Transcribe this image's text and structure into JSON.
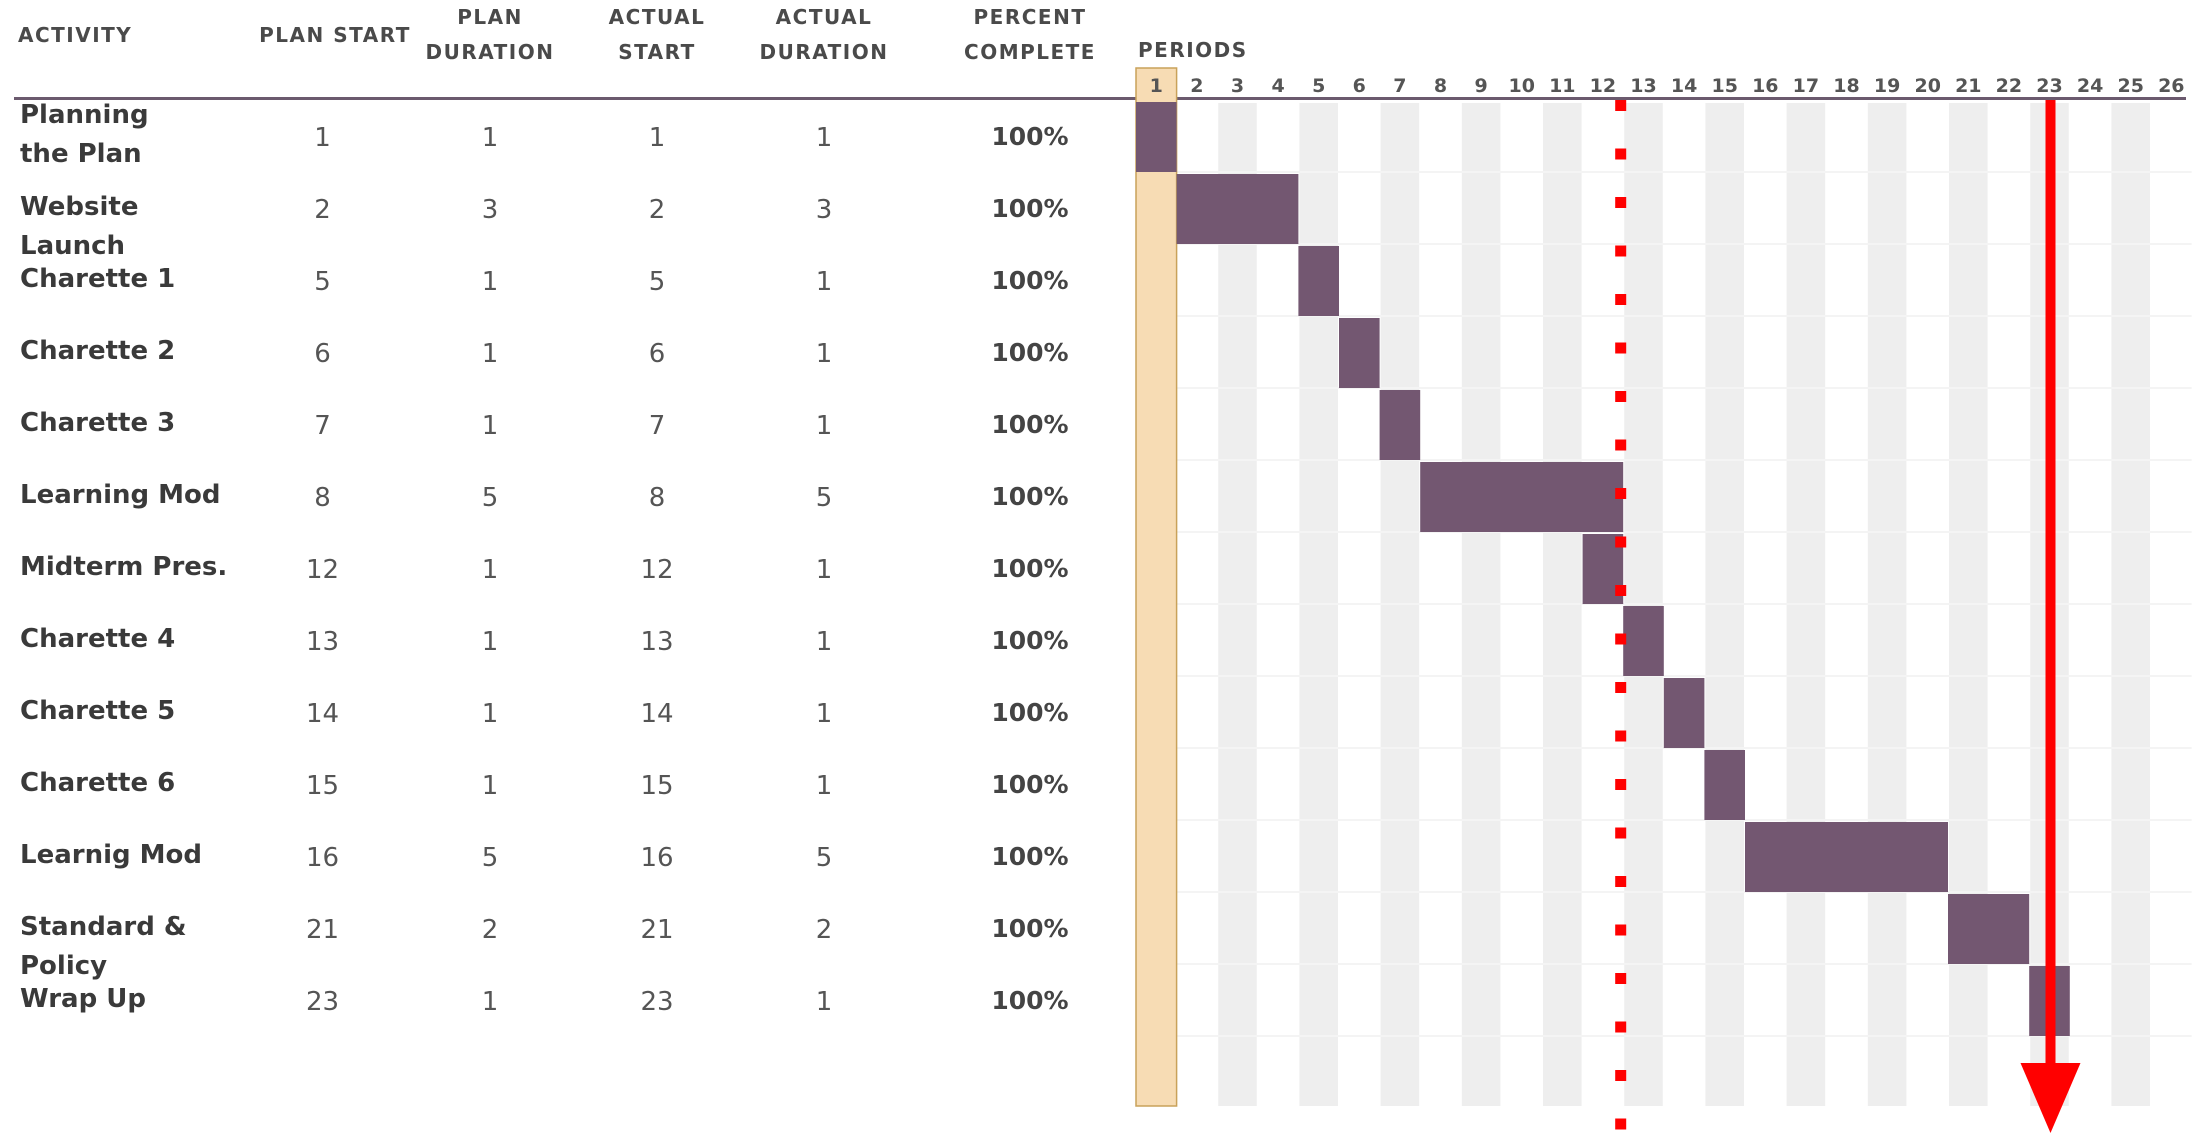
{
  "headers": {
    "activity": "ACTIVITY",
    "plan_start": "PLAN START",
    "plan_duration": [
      "PLAN",
      "DURATION"
    ],
    "actual_start": [
      "ACTUAL",
      "START"
    ],
    "actual_duration": [
      "ACTUAL",
      "DURATION"
    ],
    "percent_complete": [
      "PERCENT",
      "COMPLETE"
    ],
    "periods": "PERIODS"
  },
  "colors": {
    "bar": "#735771",
    "highlight_period": "#f7dcb4",
    "highlight_border": "#c9a25a",
    "stripe": "#eeeeee",
    "current_marker": "#ff0000",
    "end_arrow": "#ff0000"
  },
  "chart_data": {
    "type": "gantt",
    "periods": [
      1,
      2,
      3,
      4,
      5,
      6,
      7,
      8,
      9,
      10,
      11,
      12,
      13,
      14,
      15,
      16,
      17,
      18,
      19,
      20,
      21,
      22,
      23,
      24,
      25,
      26
    ],
    "highlighted_period": 1,
    "current_period_marker": 13,
    "end_marker": 23,
    "activities": [
      {
        "name": "Planning the Plan",
        "plan_start": 1,
        "plan_duration": 1,
        "actual_start": 1,
        "actual_duration": 1,
        "percent_complete": "100%"
      },
      {
        "name": "Website Launch",
        "plan_start": 2,
        "plan_duration": 3,
        "actual_start": 2,
        "actual_duration": 3,
        "percent_complete": "100%"
      },
      {
        "name": "Charette 1",
        "plan_start": 5,
        "plan_duration": 1,
        "actual_start": 5,
        "actual_duration": 1,
        "percent_complete": "100%"
      },
      {
        "name": "Charette 2",
        "plan_start": 6,
        "plan_duration": 1,
        "actual_start": 6,
        "actual_duration": 1,
        "percent_complete": "100%"
      },
      {
        "name": "Charette 3",
        "plan_start": 7,
        "plan_duration": 1,
        "actual_start": 7,
        "actual_duration": 1,
        "percent_complete": "100%"
      },
      {
        "name": "Learning Mod",
        "plan_start": 8,
        "plan_duration": 5,
        "actual_start": 8,
        "actual_duration": 5,
        "percent_complete": "100%"
      },
      {
        "name": "Midterm Pres.",
        "plan_start": 12,
        "plan_duration": 1,
        "actual_start": 12,
        "actual_duration": 1,
        "percent_complete": "100%"
      },
      {
        "name": "Charette 4",
        "plan_start": 13,
        "plan_duration": 1,
        "actual_start": 13,
        "actual_duration": 1,
        "percent_complete": "100%"
      },
      {
        "name": "Charette 5",
        "plan_start": 14,
        "plan_duration": 1,
        "actual_start": 14,
        "actual_duration": 1,
        "percent_complete": "100%"
      },
      {
        "name": "Charette 6",
        "plan_start": 15,
        "plan_duration": 1,
        "actual_start": 15,
        "actual_duration": 1,
        "percent_complete": "100%"
      },
      {
        "name": "Learnig Mod",
        "plan_start": 16,
        "plan_duration": 5,
        "actual_start": 16,
        "actual_duration": 5,
        "percent_complete": "100%"
      },
      {
        "name": "Standard & Policy",
        "plan_start": 21,
        "plan_duration": 2,
        "actual_start": 21,
        "actual_duration": 2,
        "percent_complete": "100%"
      },
      {
        "name": "Wrap Up",
        "plan_start": 23,
        "plan_duration": 1,
        "actual_start": 23,
        "actual_duration": 1,
        "percent_complete": "100%"
      }
    ]
  }
}
